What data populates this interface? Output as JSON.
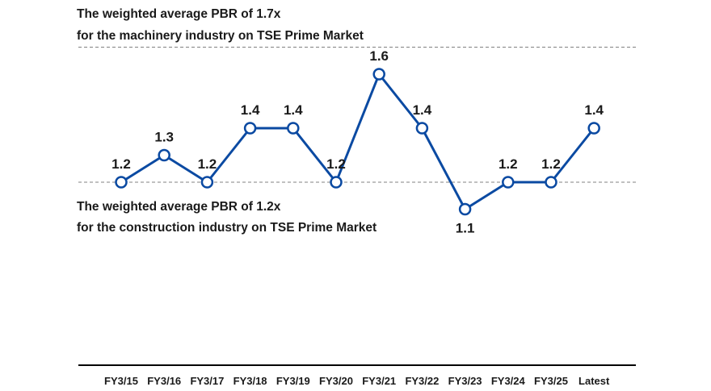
{
  "chart_data": {
    "type": "line",
    "title": "",
    "xlabel": "",
    "ylabel": "",
    "categories": [
      "FY3/15",
      "FY3/16",
      "FY3/17",
      "FY3/18",
      "FY3/19",
      "FY3/20",
      "FY3/21",
      "FY3/22",
      "FY3/23",
      "FY3/24",
      "FY3/25",
      "Latest"
    ],
    "series": [
      {
        "values": [
          1.2,
          1.3,
          1.2,
          1.4,
          1.4,
          1.2,
          1.6,
          1.4,
          1.1,
          1.2,
          1.2,
          1.4
        ]
      }
    ],
    "data_labels": [
      "1.2",
      "1.3",
      "1.2",
      "1.4",
      "1.4",
      "1.2",
      "1.6",
      "1.4",
      "1.1",
      "1.2",
      "1.2",
      "1.4"
    ],
    "reference_lines": [
      {
        "value": 1.7,
        "label_lines": [
          "The weighted average PBR of 1.7x",
          "for the machinery industry on TSE Prime Market"
        ]
      },
      {
        "value": 1.2,
        "label_lines": [
          "The weighted average PBR of 1.2x",
          "for the construction industry on TSE Prime Market"
        ]
      }
    ],
    "grid": false,
    "legend": "none",
    "colors": {
      "line": "#0b4aa2",
      "marker_fill": "#ffffff",
      "reference": "#808080",
      "axis": "#000000"
    }
  }
}
